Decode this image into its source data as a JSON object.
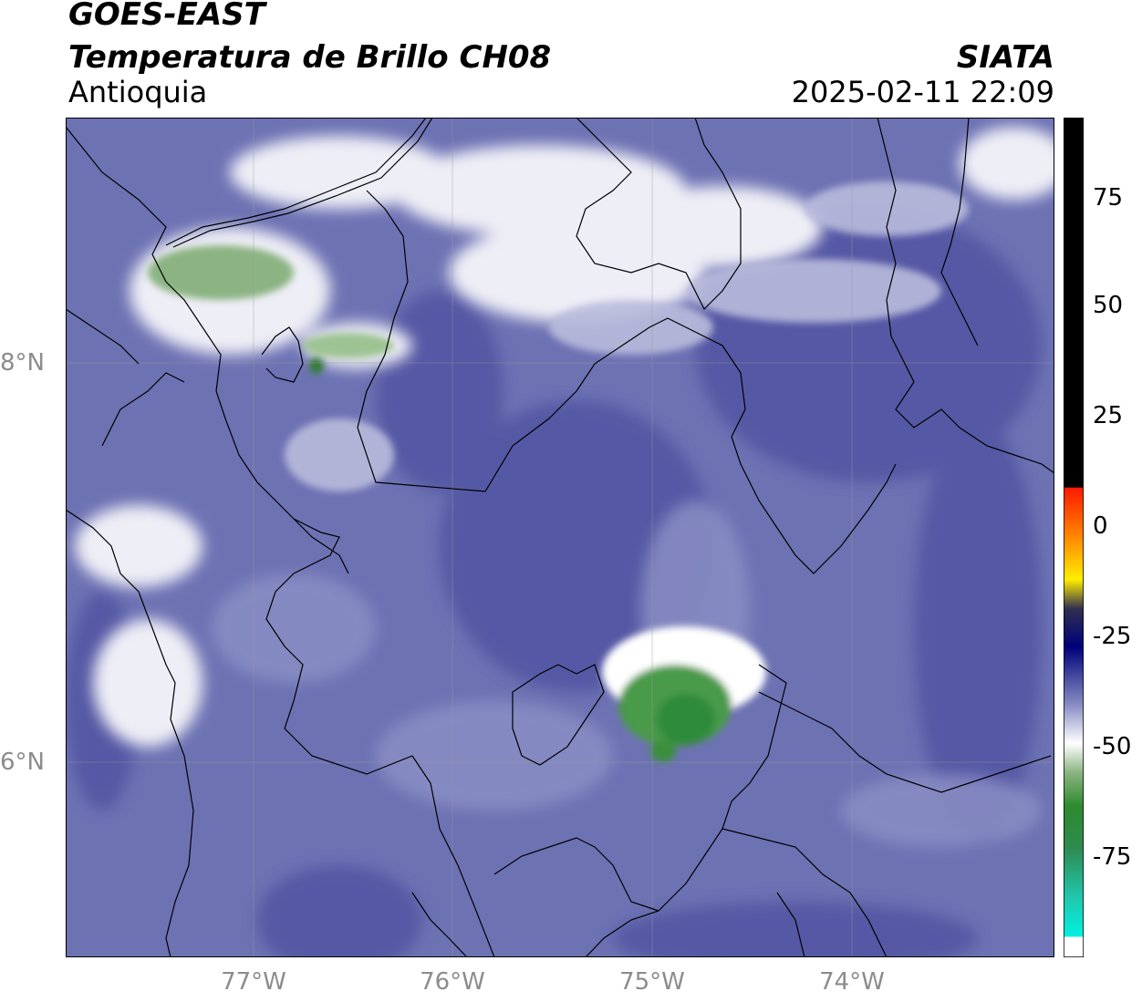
{
  "header": {
    "satellite": "GOES-EAST",
    "product": "Temperatura de Brillo CH08",
    "region": "Antioquia",
    "organization": "SIATA",
    "datetime": "2025-02-11 22:09"
  },
  "map": {
    "lat_labels": [
      "8°N",
      "6°N"
    ],
    "lon_labels": [
      "77°W",
      "76°W",
      "75°W",
      "74°W"
    ]
  },
  "colorbar": {
    "ticks": [
      "75",
      "50",
      "25",
      "0",
      "-25",
      "-50",
      "-75"
    ],
    "colors": {
      "warm_top": "#000000",
      "red": "#ff1a00",
      "orange": "#ff9900",
      "yellow": "#ffff00",
      "navy": "#00007a",
      "periwinkle": "#5558a8",
      "white": "#ffffff",
      "green": "#2e8b2e",
      "cyan": "#00e5d4"
    }
  }
}
